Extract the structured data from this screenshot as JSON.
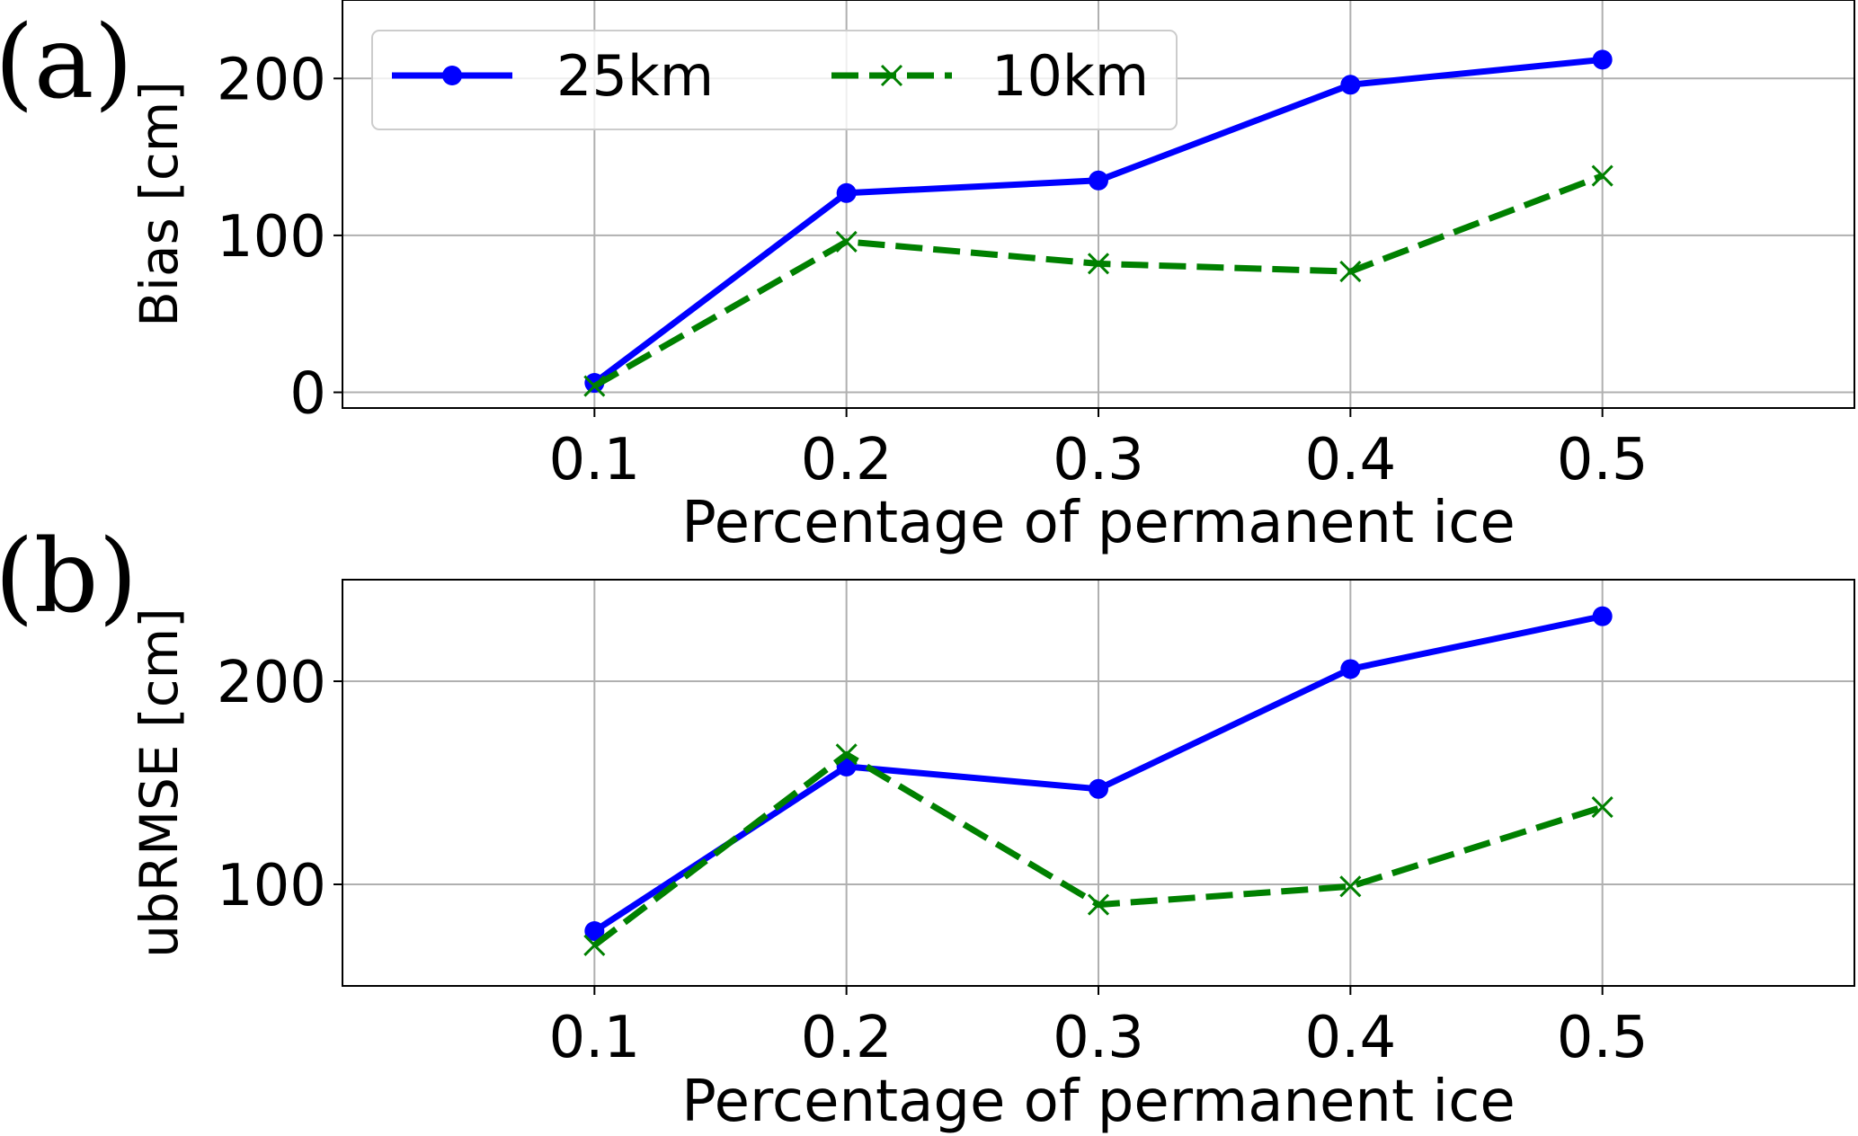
{
  "chart_data": [
    {
      "panel_label": "(a)",
      "type": "line",
      "xlabel": "Percentage of permanent ice",
      "ylabel": "Bias [cm]",
      "xlim": [
        0.0,
        0.6
      ],
      "ylim": [
        -10,
        250
      ],
      "xticks": [
        0.1,
        0.2,
        0.3,
        0.4,
        0.5
      ],
      "xtick_labels": [
        "0.1",
        "0.2",
        "0.3",
        "0.4",
        "0.5"
      ],
      "yticks": [
        0,
        100,
        200
      ],
      "ytick_labels": [
        "0",
        "100",
        "200"
      ],
      "grid": true,
      "legend": "top-left",
      "x": [
        0.1,
        0.2,
        0.3,
        0.4,
        0.5
      ],
      "series": [
        {
          "name": "25km",
          "values": [
            6,
            127,
            135,
            196,
            212
          ],
          "color": "#0000ff",
          "style": "solid",
          "marker": "circle"
        },
        {
          "name": "10km",
          "values": [
            4,
            96,
            82,
            77,
            138
          ],
          "color": "#008000",
          "style": "dashed",
          "marker": "x"
        }
      ]
    },
    {
      "panel_label": "(b)",
      "type": "line",
      "xlabel": "Percentage of permanent ice",
      "ylabel": "ubRMSE [cm]",
      "xlim": [
        0.0,
        0.6
      ],
      "ylim": [
        50,
        250
      ],
      "xticks": [
        0.1,
        0.2,
        0.3,
        0.4,
        0.5
      ],
      "xtick_labels": [
        "0.1",
        "0.2",
        "0.3",
        "0.4",
        "0.5"
      ],
      "yticks": [
        100,
        200
      ],
      "ytick_labels": [
        "100",
        "200"
      ],
      "grid": true,
      "x": [
        0.1,
        0.2,
        0.3,
        0.4,
        0.5
      ],
      "series": [
        {
          "name": "25km",
          "values": [
            77,
            158,
            147,
            206,
            232
          ],
          "color": "#0000ff",
          "style": "solid",
          "marker": "circle"
        },
        {
          "name": "10km",
          "values": [
            70,
            164,
            90,
            99,
            138
          ],
          "color": "#008000",
          "style": "dashed",
          "marker": "x"
        }
      ]
    }
  ]
}
